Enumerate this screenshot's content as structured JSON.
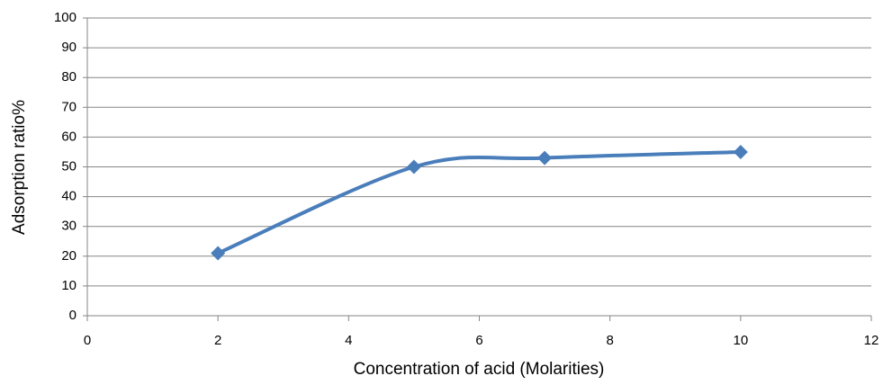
{
  "chart_data": {
    "type": "line",
    "smooth": true,
    "marker": "diamond",
    "x_label": "Concentration of acid (Molarities)",
    "y_label": "Adsorption ratio%",
    "x": [
      2,
      5,
      7,
      10
    ],
    "series": [
      {
        "color": "#4a7ebb",
        "values": [
          21,
          50,
          53,
          55
        ]
      }
    ],
    "xlim": [
      0,
      12
    ],
    "xticks": [
      0,
      2,
      4,
      6,
      8,
      10,
      12
    ],
    "ylim": [
      0,
      100
    ],
    "yticks": [
      0,
      10,
      20,
      30,
      40,
      50,
      60,
      70,
      80,
      90,
      100
    ],
    "grid": true
  }
}
